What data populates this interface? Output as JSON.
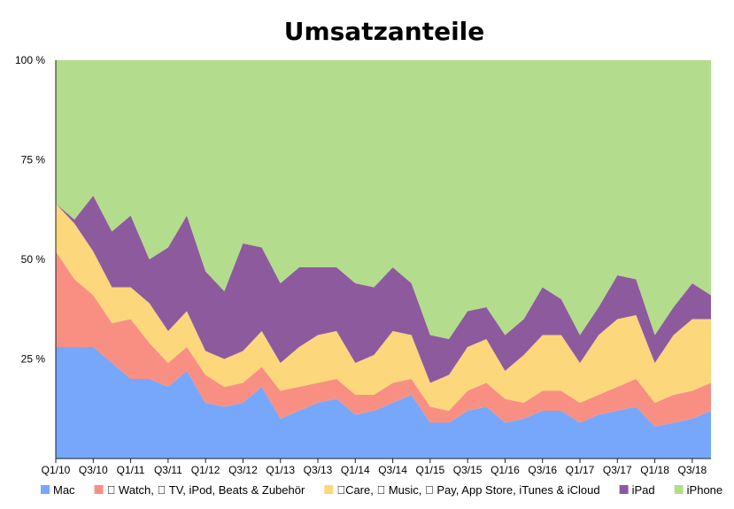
{
  "chart_data": {
    "type": "area",
    "stacked": true,
    "percent": true,
    "title": "Umsatzanteile",
    "xlabel": "",
    "ylabel": "",
    "ylim": [
      0,
      100
    ],
    "y_ticks": [
      "100 %",
      "75 %",
      "50 %",
      "25 %"
    ],
    "y_tick_values": [
      100,
      75,
      50,
      25
    ],
    "grid": false,
    "legend_position": "bottom",
    "x_tick_labels": [
      "Q1/10",
      "Q3/10",
      "Q1/11",
      "Q3/11",
      "Q1/12",
      "Q3/12",
      "Q1/13",
      "Q3/13",
      "Q1/14",
      "Q3/14",
      "Q1/15",
      "Q3/15",
      "Q1/16",
      "Q3/16",
      "Q1/17",
      "Q3/17",
      "Q1/18",
      "Q3/18"
    ],
    "x": [
      "Q1/10",
      "Q2/10",
      "Q3/10",
      "Q4/10",
      "Q1/11",
      "Q2/11",
      "Q3/11",
      "Q4/11",
      "Q1/12",
      "Q2/12",
      "Q3/12",
      "Q4/12",
      "Q1/13",
      "Q2/13",
      "Q3/13",
      "Q4/13",
      "Q1/14",
      "Q2/14",
      "Q3/14",
      "Q4/14",
      "Q1/15",
      "Q2/15",
      "Q3/15",
      "Q4/15",
      "Q1/16",
      "Q2/16",
      "Q3/16",
      "Q4/16",
      "Q1/17",
      "Q2/17",
      "Q3/17",
      "Q4/17",
      "Q1/18",
      "Q2/18",
      "Q3/18",
      "Q4/18"
    ],
    "series": [
      {
        "name": "Mac",
        "color": "#76a7fa",
        "values": [
          28,
          28,
          28,
          24,
          20,
          20,
          18,
          22,
          14,
          13,
          14,
          18,
          10,
          12,
          14,
          15,
          11,
          12,
          14,
          16,
          9,
          9,
          12,
          13,
          9,
          10,
          12,
          12,
          9,
          11,
          12,
          13,
          8,
          9,
          10,
          12
        ]
      },
      {
        "name": " Watch,  TV, iPod, Beats & Zubehör",
        "color": "#f98f83",
        "values": [
          24,
          17,
          13,
          10,
          15,
          9,
          6,
          6,
          7,
          5,
          5,
          5,
          7,
          6,
          5,
          5,
          5,
          4,
          5,
          4,
          4,
          3,
          5,
          6,
          6,
          4,
          5,
          5,
          5,
          5,
          6,
          7,
          6,
          7,
          7,
          7
        ]
      },
      {
        "name": "Care,  Music,  Pay, App Store, iTunes & iCloud",
        "color": "#fcd77b",
        "values": [
          12,
          14,
          11,
          9,
          8,
          10,
          8,
          9,
          6,
          7,
          8,
          9,
          7,
          10,
          12,
          12,
          8,
          10,
          13,
          11,
          6,
          9,
          11,
          11,
          7,
          12,
          14,
          14,
          10,
          15,
          17,
          16,
          10,
          15,
          18,
          16
        ]
      },
      {
        "name": "iPad",
        "color": "#8e5a9e",
        "values": [
          0,
          1,
          14,
          14,
          18,
          11,
          21,
          24,
          20,
          17,
          27,
          21,
          20,
          20,
          17,
          16,
          20,
          17,
          16,
          13,
          12,
          9,
          9,
          8,
          9,
          9,
          12,
          9,
          7,
          7,
          11,
          9,
          7,
          7,
          9,
          6
        ]
      },
      {
        "name": "iPhone",
        "color": "#b3dc8d",
        "values": [
          36,
          40,
          34,
          43,
          39,
          50,
          47,
          39,
          53,
          58,
          46,
          47,
          56,
          52,
          52,
          52,
          56,
          57,
          52,
          56,
          69,
          70,
          63,
          62,
          69,
          65,
          57,
          60,
          69,
          62,
          54,
          55,
          69,
          62,
          56,
          59
        ]
      }
    ]
  }
}
